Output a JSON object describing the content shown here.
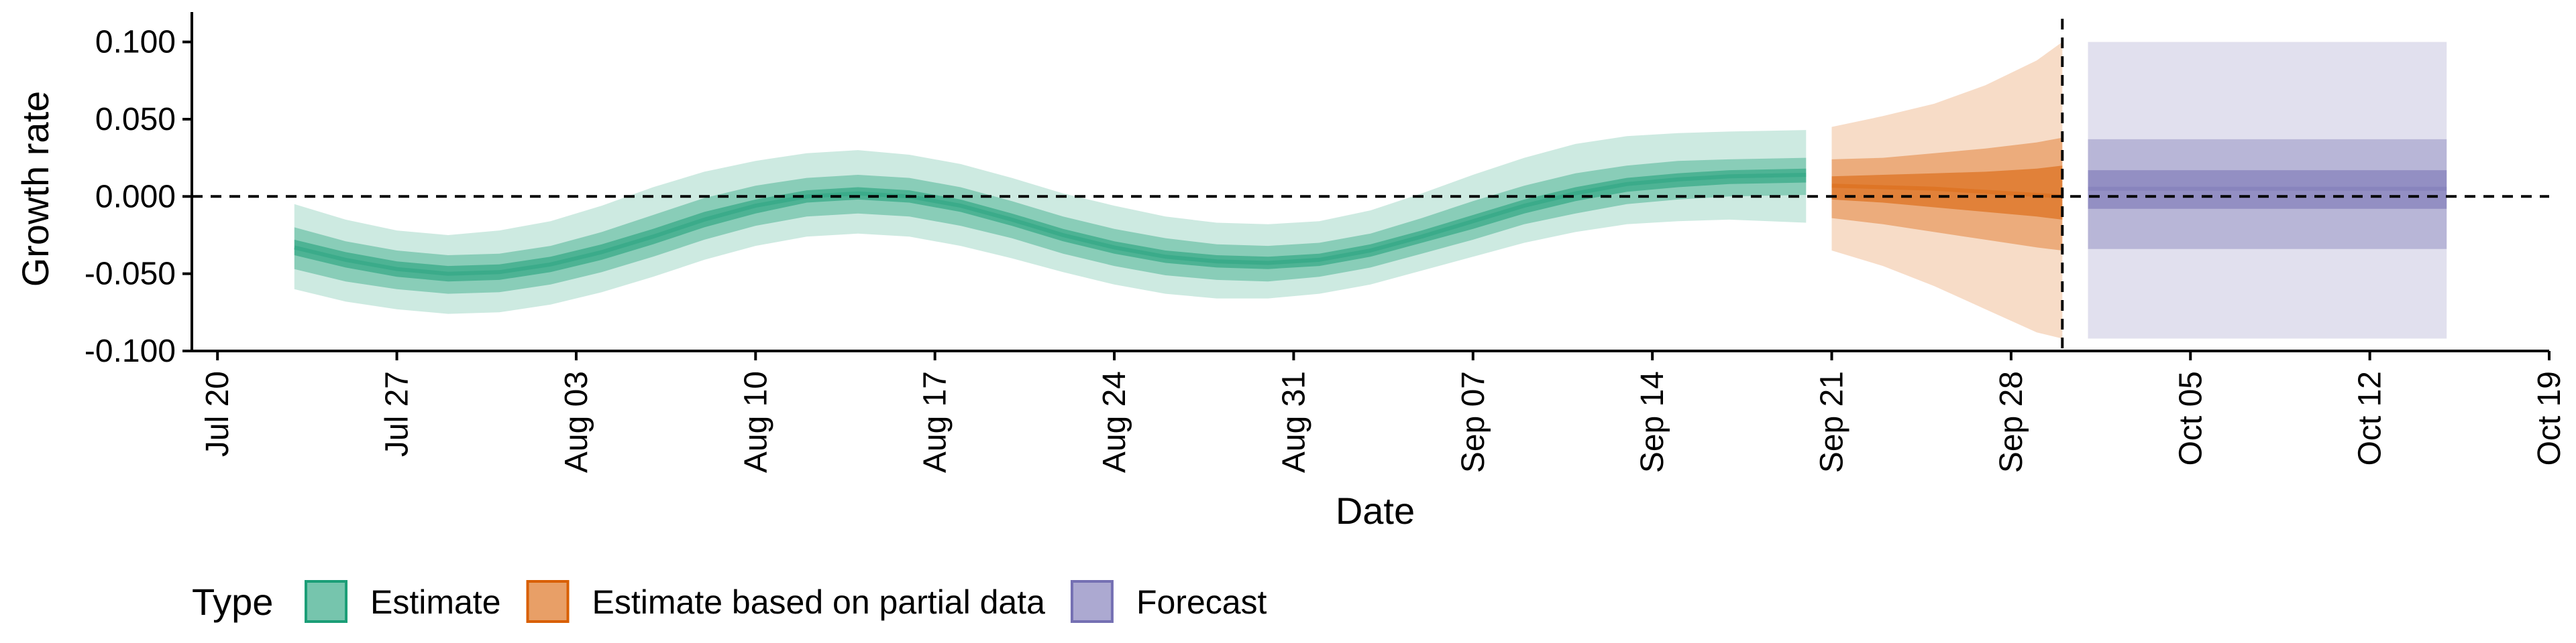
{
  "chart_data": {
    "type": "area",
    "xlabel": "Date",
    "ylabel": "Growth rate",
    "ylim": [
      -0.1,
      0.115
    ],
    "y_ticks": [
      -0.1,
      -0.05,
      0.0,
      0.05,
      0.1
    ],
    "y_tick_labels": [
      "-0.100",
      "-0.050",
      "0.000",
      "0.050",
      "0.100"
    ],
    "x_ticks": [
      "2020-07-20",
      "2020-07-27",
      "2020-08-03",
      "2020-08-10",
      "2020-08-17",
      "2020-08-24",
      "2020-08-31",
      "2020-09-07",
      "2020-09-14",
      "2020-09-21",
      "2020-09-28",
      "2020-10-05",
      "2020-10-12",
      "2020-10-19"
    ],
    "x_tick_labels": [
      "Jul 20",
      "Jul 27",
      "Aug 03",
      "Aug 10",
      "Aug 17",
      "Aug 24",
      "Aug 31",
      "Sep 07",
      "Sep 14",
      "Sep 21",
      "Sep 28",
      "Oct 05",
      "Oct 12",
      "Oct 19"
    ],
    "xlim": [
      "2020-07-19",
      "2020-10-19"
    ],
    "reference_hline": 0.0,
    "reference_vline": "2020-09-30",
    "legend": {
      "title": "Type",
      "position": "bottom-left",
      "entries": [
        {
          "label": "Estimate",
          "color": "#1b9e77"
        },
        {
          "label": "Estimate based on partial data",
          "color": "#d95f02"
        },
        {
          "label": "Forecast",
          "color": "#7570b3"
        }
      ]
    },
    "series": [
      {
        "name": "Estimate",
        "color": "#1b9e77",
        "x": [
          "2020-07-23",
          "2020-07-25",
          "2020-07-27",
          "2020-07-29",
          "2020-07-31",
          "2020-08-02",
          "2020-08-04",
          "2020-08-06",
          "2020-08-08",
          "2020-08-10",
          "2020-08-12",
          "2020-08-14",
          "2020-08-16",
          "2020-08-18",
          "2020-08-20",
          "2020-08-22",
          "2020-08-24",
          "2020-08-26",
          "2020-08-28",
          "2020-08-30",
          "2020-09-01",
          "2020-09-03",
          "2020-09-05",
          "2020-09-07",
          "2020-09-09",
          "2020-09-11",
          "2020-09-13",
          "2020-09-15",
          "2020-09-17",
          "2020-09-20"
        ],
        "upper90": [
          -0.005,
          -0.015,
          -0.022,
          -0.025,
          -0.022,
          -0.016,
          -0.006,
          0.006,
          0.016,
          0.023,
          0.028,
          0.03,
          0.027,
          0.021,
          0.012,
          0.002,
          -0.006,
          -0.013,
          -0.017,
          -0.018,
          -0.016,
          -0.009,
          0.002,
          0.014,
          0.025,
          0.034,
          0.039,
          0.041,
          0.042,
          0.043
        ],
        "upper50": [
          -0.02,
          -0.029,
          -0.035,
          -0.038,
          -0.037,
          -0.032,
          -0.023,
          -0.012,
          -0.001,
          0.007,
          0.012,
          0.014,
          0.012,
          0.006,
          -0.003,
          -0.013,
          -0.021,
          -0.027,
          -0.031,
          -0.032,
          -0.03,
          -0.024,
          -0.014,
          -0.003,
          0.007,
          0.015,
          0.02,
          0.023,
          0.024,
          0.025
        ],
        "upper20": [
          -0.028,
          -0.036,
          -0.042,
          -0.045,
          -0.044,
          -0.039,
          -0.031,
          -0.021,
          -0.01,
          -0.002,
          0.004,
          0.006,
          0.004,
          -0.002,
          -0.011,
          -0.021,
          -0.029,
          -0.035,
          -0.038,
          -0.039,
          -0.037,
          -0.031,
          -0.022,
          -0.012,
          -0.002,
          0.006,
          0.012,
          0.015,
          0.017,
          0.018
        ],
        "median": [
          -0.033,
          -0.041,
          -0.047,
          -0.05,
          -0.049,
          -0.044,
          -0.036,
          -0.026,
          -0.015,
          -0.006,
          0.0,
          0.002,
          0.0,
          -0.006,
          -0.015,
          -0.025,
          -0.033,
          -0.039,
          -0.042,
          -0.043,
          -0.041,
          -0.035,
          -0.026,
          -0.016,
          -0.006,
          0.002,
          0.008,
          0.011,
          0.013,
          0.014
        ],
        "lower20": [
          -0.038,
          -0.046,
          -0.052,
          -0.055,
          -0.054,
          -0.049,
          -0.041,
          -0.031,
          -0.02,
          -0.011,
          -0.004,
          -0.002,
          -0.004,
          -0.01,
          -0.019,
          -0.029,
          -0.037,
          -0.043,
          -0.046,
          -0.047,
          -0.045,
          -0.039,
          -0.03,
          -0.021,
          -0.011,
          -0.003,
          0.003,
          0.006,
          0.008,
          0.009
        ],
        "lower50": [
          -0.047,
          -0.055,
          -0.06,
          -0.063,
          -0.062,
          -0.057,
          -0.049,
          -0.039,
          -0.028,
          -0.019,
          -0.013,
          -0.011,
          -0.013,
          -0.019,
          -0.027,
          -0.037,
          -0.045,
          -0.051,
          -0.054,
          -0.055,
          -0.052,
          -0.046,
          -0.037,
          -0.028,
          -0.018,
          -0.011,
          -0.005,
          -0.002,
          0.0,
          0.001
        ],
        "lower90": [
          -0.06,
          -0.068,
          -0.073,
          -0.076,
          -0.075,
          -0.07,
          -0.062,
          -0.052,
          -0.041,
          -0.032,
          -0.026,
          -0.024,
          -0.026,
          -0.032,
          -0.04,
          -0.049,
          -0.057,
          -0.063,
          -0.066,
          -0.066,
          -0.063,
          -0.057,
          -0.048,
          -0.039,
          -0.03,
          -0.023,
          -0.018,
          -0.016,
          -0.015,
          -0.017
        ]
      },
      {
        "name": "Estimate based on partial data",
        "color": "#d95f02",
        "x": [
          "2020-09-21",
          "2020-09-23",
          "2020-09-25",
          "2020-09-27",
          "2020-09-29",
          "2020-09-30"
        ],
        "upper90": [
          0.045,
          0.052,
          0.06,
          0.072,
          0.088,
          0.1
        ],
        "upper50": [
          0.024,
          0.025,
          0.028,
          0.031,
          0.035,
          0.038
        ],
        "upper20": [
          0.013,
          0.014,
          0.015,
          0.016,
          0.018,
          0.02
        ],
        "median": [
          0.007,
          0.006,
          0.005,
          0.003,
          0.001,
          0.0
        ],
        "lower20": [
          -0.002,
          -0.004,
          -0.007,
          -0.01,
          -0.013,
          -0.015
        ],
        "lower50": [
          -0.014,
          -0.018,
          -0.023,
          -0.028,
          -0.033,
          -0.035
        ],
        "lower90": [
          -0.035,
          -0.045,
          -0.058,
          -0.073,
          -0.088,
          -0.092
        ]
      },
      {
        "name": "Forecast",
        "color": "#7570b3",
        "x": [
          "2020-10-01",
          "2020-10-15"
        ],
        "upper90": [
          0.1,
          0.1
        ],
        "upper50": [
          0.037,
          0.037
        ],
        "upper20": [
          0.017,
          0.017
        ],
        "median": [
          0.005,
          0.005
        ],
        "lower20": [
          -0.008,
          -0.008
        ],
        "lower50": [
          -0.034,
          -0.034
        ],
        "lower90": [
          -0.092,
          -0.092
        ]
      }
    ]
  }
}
